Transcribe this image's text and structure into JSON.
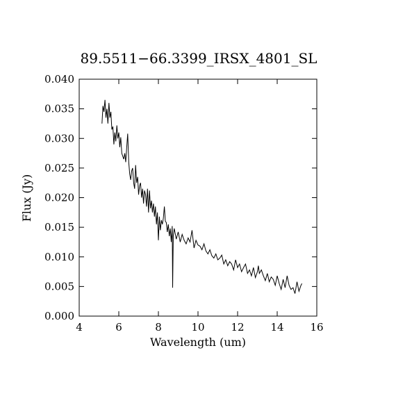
{
  "chart_data": {
    "type": "line",
    "title": "89.5511−66.3399_IRSX_4801_SL",
    "xlabel": "Wavelength (um)",
    "ylabel": "Flux (Jy)",
    "xlim": [
      4,
      16
    ],
    "ylim": [
      0.0,
      0.04
    ],
    "xticks": [
      4,
      6,
      8,
      10,
      12,
      14,
      16
    ],
    "xtick_labels": [
      "4",
      "6",
      "8",
      "10",
      "12",
      "14",
      "16"
    ],
    "yticks": [
      0.0,
      0.005,
      0.01,
      0.015,
      0.02,
      0.025,
      0.03,
      0.035,
      0.04
    ],
    "ytick_labels": [
      "0.000",
      "0.005",
      "0.010",
      "0.015",
      "0.020",
      "0.025",
      "0.030",
      "0.035",
      "0.040"
    ],
    "grid": false,
    "series": [
      {
        "color": "#000000",
        "x": [
          5.15,
          5.2,
          5.25,
          5.3,
          5.35,
          5.4,
          5.45,
          5.5,
          5.55,
          5.6,
          5.65,
          5.7,
          5.75,
          5.8,
          5.85,
          5.9,
          5.95,
          6.0,
          6.05,
          6.1,
          6.15,
          6.2,
          6.25,
          6.3,
          6.35,
          6.4,
          6.45,
          6.5,
          6.55,
          6.6,
          6.65,
          6.7,
          6.75,
          6.8,
          6.85,
          6.9,
          6.95,
          7.0,
          7.05,
          7.1,
          7.15,
          7.2,
          7.25,
          7.3,
          7.35,
          7.4,
          7.45,
          7.5,
          7.55,
          7.6,
          7.65,
          7.7,
          7.75,
          7.8,
          7.85,
          7.9,
          7.95,
          8.0,
          8.05,
          8.1,
          8.15,
          8.2,
          8.25,
          8.3,
          8.35,
          8.4,
          8.45,
          8.5,
          8.55,
          8.6,
          8.65,
          8.7,
          8.72,
          8.75,
          8.8,
          8.9,
          9.0,
          9.1,
          9.2,
          9.3,
          9.4,
          9.5,
          9.6,
          9.7,
          9.8,
          9.9,
          10.0,
          10.1,
          10.2,
          10.3,
          10.4,
          10.5,
          10.6,
          10.7,
          10.8,
          10.9,
          11.0,
          11.1,
          11.2,
          11.3,
          11.4,
          11.5,
          11.6,
          11.7,
          11.8,
          11.9,
          12.0,
          12.1,
          12.2,
          12.3,
          12.4,
          12.5,
          12.6,
          12.7,
          12.8,
          12.9,
          13.0,
          13.05,
          13.1,
          13.2,
          13.3,
          13.4,
          13.5,
          13.6,
          13.7,
          13.8,
          13.9,
          14.0,
          14.1,
          14.2,
          14.3,
          14.4,
          14.5,
          14.6,
          14.7,
          14.8,
          14.9,
          15.0,
          15.1,
          15.2,
          15.25
        ],
        "y": [
          0.0325,
          0.0355,
          0.0345,
          0.0365,
          0.0335,
          0.035,
          0.0325,
          0.036,
          0.0335,
          0.0345,
          0.0315,
          0.032,
          0.029,
          0.031,
          0.0295,
          0.0322,
          0.03,
          0.031,
          0.0285,
          0.0302,
          0.0275,
          0.027,
          0.0265,
          0.0275,
          0.026,
          0.0285,
          0.0308,
          0.026,
          0.024,
          0.023,
          0.0245,
          0.025,
          0.0225,
          0.0215,
          0.0255,
          0.0225,
          0.0235,
          0.0205,
          0.022,
          0.0225,
          0.02,
          0.0215,
          0.019,
          0.0212,
          0.0205,
          0.0185,
          0.0215,
          0.0175,
          0.0212,
          0.0182,
          0.0195,
          0.0175,
          0.019,
          0.0168,
          0.0185,
          0.0155,
          0.0175,
          0.0128,
          0.0168,
          0.0145,
          0.0162,
          0.0155,
          0.0165,
          0.0185,
          0.016,
          0.0158,
          0.0142,
          0.0155,
          0.0135,
          0.0148,
          0.0125,
          0.0152,
          0.0048,
          0.0135,
          0.0148,
          0.013,
          0.0142,
          0.0125,
          0.0138,
          0.0128,
          0.0122,
          0.0132,
          0.0125,
          0.0145,
          0.0115,
          0.0128,
          0.012,
          0.0118,
          0.0112,
          0.0122,
          0.011,
          0.0105,
          0.0112,
          0.0102,
          0.0098,
          0.0105,
          0.0095,
          0.0098,
          0.0103,
          0.0088,
          0.0095,
          0.0085,
          0.0092,
          0.0088,
          0.0078,
          0.0095,
          0.0082,
          0.0088,
          0.0075,
          0.0082,
          0.0088,
          0.0072,
          0.0078,
          0.0068,
          0.0082,
          0.0065,
          0.0075,
          0.0085,
          0.0072,
          0.0078,
          0.0068,
          0.006,
          0.0072,
          0.0058,
          0.0066,
          0.0062,
          0.0052,
          0.0068,
          0.0055,
          0.0045,
          0.0062,
          0.0048,
          0.0068,
          0.0052,
          0.0045,
          0.0048,
          0.0038,
          0.0058,
          0.0042,
          0.0052,
          0.0055
        ]
      }
    ]
  }
}
